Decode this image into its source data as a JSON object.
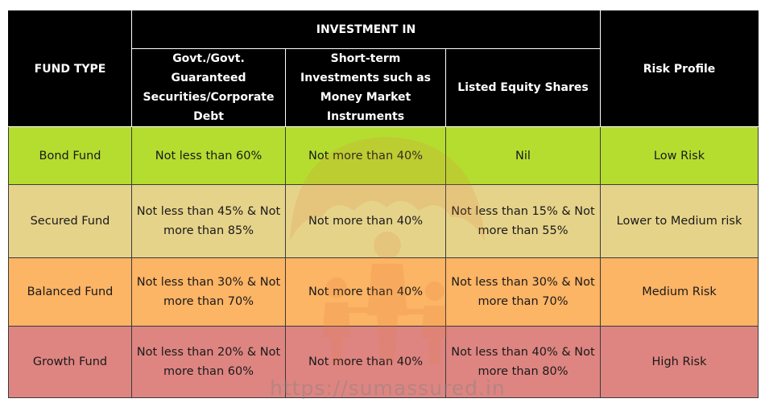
{
  "colors": {
    "header_bg": "#000000",
    "header_text": "#ffffff",
    "bond_bg": "#b5dd30",
    "secured_bg": "#e6d38a",
    "balanced_bg": "#fcb465",
    "growth_bg": "#de8581",
    "watermark": "#e07a3a"
  },
  "header": {
    "fund_type": "FUND TYPE",
    "investment_in": "INVESTMENT IN",
    "col_govt": "Govt./Govt. Guaranteed Securities/Corporate Debt",
    "col_short_term": "Short-term Investments such as Money Market Instruments",
    "col_equity": "Listed Equity Shares",
    "risk_profile": "Risk Profile"
  },
  "rows": [
    {
      "fund": "Bond Fund",
      "govt": "Not less than 60%",
      "short_term": "Not more than 40%",
      "equity": "Nil",
      "risk": "Low Risk"
    },
    {
      "fund": "Secured Fund",
      "govt": "Not less than 45% & Not more than 85%",
      "short_term": "Not more than 40%",
      "equity": "Not less than 15% & Not more than 55%",
      "risk": "Lower to Medium risk"
    },
    {
      "fund": "Balanced Fund",
      "govt": "Not less than 30% & Not more than 70%",
      "short_term": "Not more than 40%",
      "equity": "Not less than 30% & Not more than 70%",
      "risk": "Medium Risk"
    },
    {
      "fund": "Growth Fund",
      "govt": "Not less than 20% & Not more than 60%",
      "short_term": "Not more than 40%",
      "equity": "Not less than 40% & Not more than 80%",
      "risk": "High Risk"
    }
  ],
  "watermark": {
    "url_text": "https://sumassured.in",
    "icon": "family-umbrella-icon"
  }
}
